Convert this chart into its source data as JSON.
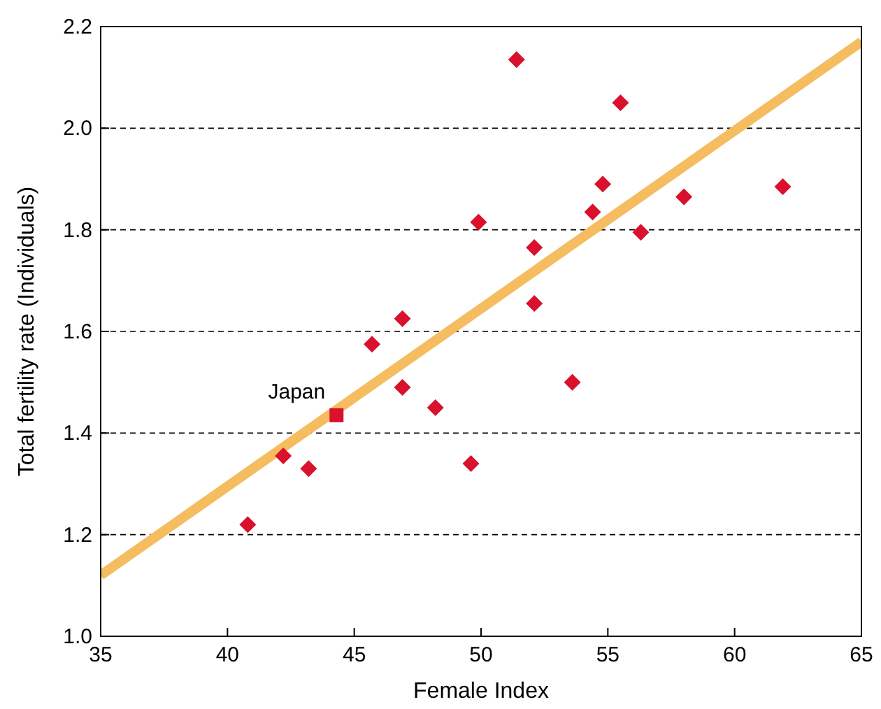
{
  "chart_data": {
    "type": "scatter",
    "xlabel": "Female Index",
    "ylabel": "Total fertility rate (Individuals)",
    "xlim": [
      35,
      65
    ],
    "xticks": [
      35,
      40,
      45,
      50,
      55,
      60,
      65
    ],
    "ylim": [
      1.0,
      2.2
    ],
    "yticks": [
      {
        "value": 1.0,
        "label": "1.0"
      },
      1.2,
      1.4,
      1.6,
      1.8,
      {
        "value": 2.0,
        "label": "2.0"
      },
      2.2
    ],
    "grid": "y",
    "series": [
      {
        "type": "line",
        "color": "#f5bc60",
        "x": [
          35,
          65
        ],
        "values": [
          1.12,
          2.17
        ],
        "marker": "none",
        "line_style": "solid"
      },
      {
        "type": "scatter",
        "color": "#d9112c",
        "marker": "diamond",
        "x": [
          40.8,
          42.2,
          43.2,
          45.7,
          46.9,
          46.9,
          48.2,
          49.6,
          49.9,
          51.4,
          52.1,
          52.1,
          53.6,
          54.4,
          54.8,
          55.5,
          56.3,
          58.0,
          61.9
        ],
        "values": [
          1.22,
          1.355,
          1.33,
          1.575,
          1.625,
          1.49,
          1.45,
          1.34,
          1.815,
          2.135,
          1.765,
          1.655,
          1.5,
          1.835,
          1.89,
          2.05,
          1.795,
          1.865,
          1.885
        ]
      },
      {
        "type": "scatter",
        "color": "#d9112c",
        "marker": "square",
        "x": [
          44.3
        ],
        "values": [
          1.435
        ]
      }
    ],
    "annotations": [
      {
        "text": "Japan",
        "x": 44.3,
        "y": 1.435
      }
    ]
  }
}
